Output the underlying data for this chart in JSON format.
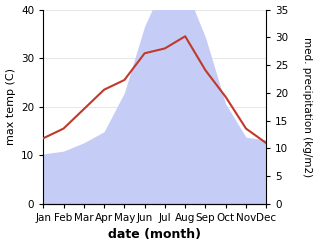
{
  "months": [
    "Jan",
    "Feb",
    "Mar",
    "Apr",
    "May",
    "Jun",
    "Jul",
    "Aug",
    "Sep",
    "Oct",
    "Nov",
    "Dec"
  ],
  "temperature": [
    13.5,
    15.5,
    19.5,
    23.5,
    25.5,
    31.0,
    32.0,
    34.5,
    27.5,
    22.0,
    15.5,
    12.5
  ],
  "precipitation": [
    9,
    9.5,
    11,
    13,
    20,
    32,
    40,
    39,
    30,
    18,
    12,
    11.5
  ],
  "temp_ylim": [
    0,
    40
  ],
  "precip_ylim": [
    0,
    35
  ],
  "temp_yticks": [
    0,
    10,
    20,
    30,
    40
  ],
  "precip_yticks": [
    0,
    5,
    10,
    15,
    20,
    25,
    30,
    35
  ],
  "temp_color": "#c0392b",
  "precip_fill_color": "#c5cdf7",
  "background_color": "#ffffff",
  "ylabel_left": "max temp (C)",
  "ylabel_right": "med. precipitation (kg/m2)",
  "xlabel": "date (month)",
  "label_fontsize": 8,
  "tick_fontsize": 7.5
}
